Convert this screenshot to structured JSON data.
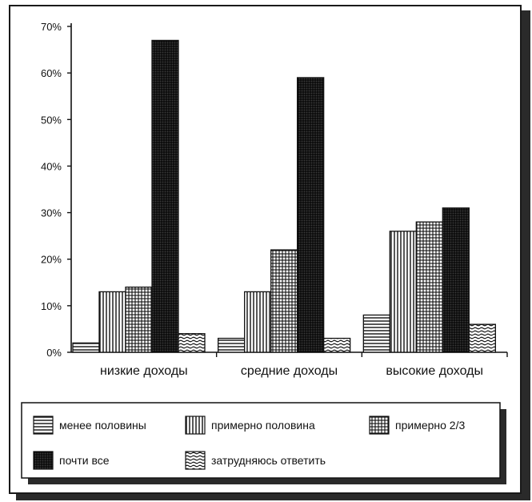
{
  "chart_data": {
    "type": "bar",
    "categories": [
      "низкие доходы",
      "средние доходы",
      "высокие доходы"
    ],
    "series": [
      {
        "name": "менее половины",
        "values": [
          2,
          3,
          8
        ],
        "pattern": "hlines"
      },
      {
        "name": "примерно половина",
        "values": [
          13,
          13,
          26
        ],
        "pattern": "vlines"
      },
      {
        "name": "примерно 2/3",
        "values": [
          14,
          22,
          28
        ],
        "pattern": "grid"
      },
      {
        "name": "почти все",
        "values": [
          67,
          59,
          31
        ],
        "pattern": "dense"
      },
      {
        "name": "затрудняюсь ответить",
        "values": [
          4,
          3,
          6
        ],
        "pattern": "waves"
      }
    ],
    "yticks": [
      "0%",
      "10%",
      "20%",
      "30%",
      "40%",
      "50%",
      "60%",
      "70%"
    ],
    "ylim": [
      0,
      70
    ],
    "legend_position": "bottom",
    "grid": false
  }
}
